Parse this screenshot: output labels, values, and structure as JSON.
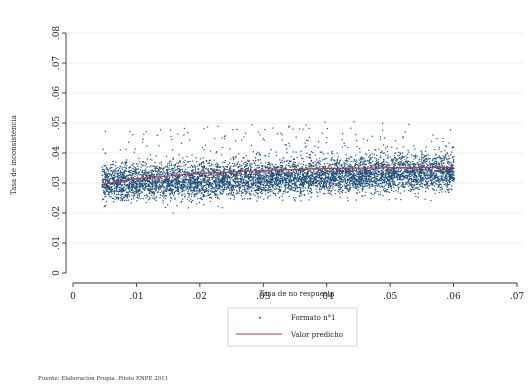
{
  "chart_data": {
    "type": "scatter",
    "xlabel": "Tasa de no respuesta",
    "ylabel": "Tasa de inconsistencia",
    "xlim": [
      0,
      0.07
    ],
    "ylim": [
      0,
      0.08
    ],
    "x_ticks": [
      0,
      0.01,
      0.02,
      0.03,
      0.04,
      0.05,
      0.06,
      0.07
    ],
    "x_tick_labels": [
      "0",
      ".01",
      ".02",
      ".03",
      ".04",
      ".05",
      ".06",
      ".07"
    ],
    "y_ticks": [
      0,
      0.01,
      0.02,
      0.03,
      0.04,
      0.05,
      0.06,
      0.07,
      0.08
    ],
    "y_tick_labels": [
      "0",
      ".01",
      ".02",
      ".03",
      ".04",
      ".05",
      ".06",
      ".07",
      ".08"
    ],
    "grid": "horizontal",
    "legend_placement": "bottom",
    "series": [
      {
        "name": "Formato n°1",
        "kind": "scatter",
        "color": "#1f4e79",
        "x_range": [
          0.0045,
          0.06
        ],
        "y_center_range": [
          0.03,
          0.034
        ],
        "y_spread": [
          0.02,
          0.057
        ]
      },
      {
        "name": "Valor predicho",
        "kind": "line",
        "color": "#b03a48",
        "x": [
          0.0045,
          0.01,
          0.02,
          0.03,
          0.04,
          0.05,
          0.06
        ],
        "y": [
          0.0295,
          0.0315,
          0.0332,
          0.0342,
          0.0348,
          0.0351,
          0.0352
        ]
      }
    ]
  },
  "source_note": "Fuente: Elaboración Propia. Piloto ENPE 2011"
}
